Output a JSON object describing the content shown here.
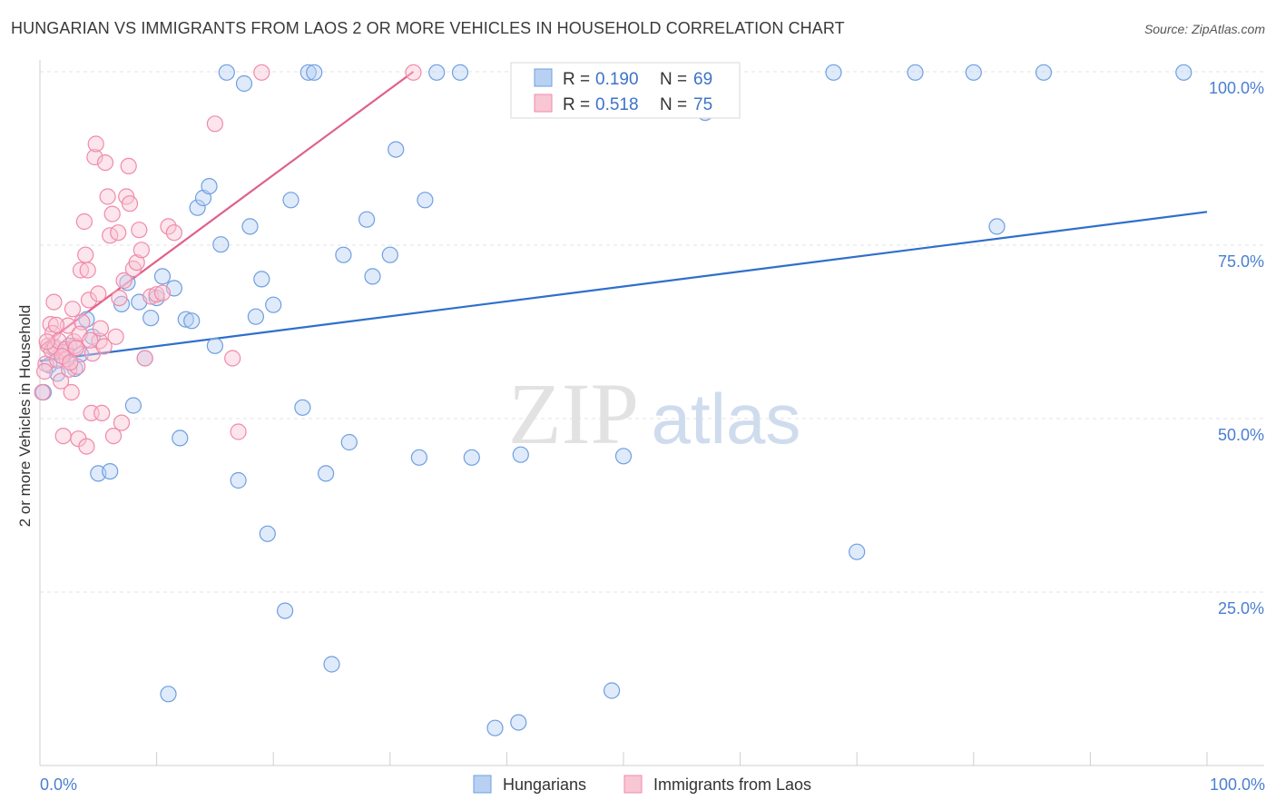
{
  "title": "HUNGARIAN VS IMMIGRANTS FROM LAOS 2 OR MORE VEHICLES IN HOUSEHOLD CORRELATION CHART",
  "source": "Source: ZipAtlas.com",
  "watermark": {
    "zip": "ZIP",
    "atlas": "atlas"
  },
  "chart_data": {
    "type": "scatter",
    "title": "HUNGARIAN VS IMMIGRANTS FROM LAOS 2 OR MORE VEHICLES IN HOUSEHOLD CORRELATION CHART",
    "xlabel": "",
    "ylabel": "2 or more Vehicles in Household",
    "xlim": [
      0,
      100
    ],
    "ylim": [
      0,
      100
    ],
    "x_tick_labels": {
      "left": "0.0%",
      "right": "100.0%"
    },
    "y_ticks": [
      {
        "value": 25,
        "label": "25.0%"
      },
      {
        "value": 50,
        "label": "50.0%"
      },
      {
        "value": 75,
        "label": "75.0%"
      },
      {
        "value": 100,
        "label": "100.0%"
      }
    ],
    "legend": {
      "entries": [
        {
          "r_label": "R =",
          "r_value": "0.190",
          "n_label": "N =",
          "n_value": "69"
        },
        {
          "r_label": "R =",
          "r_value": "0.518",
          "n_label": "N =",
          "n_value": "75"
        }
      ]
    },
    "series": [
      {
        "name": "Hungarians",
        "color": "#6f9fe0",
        "fill": "#b8d1f3",
        "line_color": "#2f6fcb",
        "trend": {
          "x0": 0,
          "y0": 58.3,
          "x1": 100,
          "y1": 79.8
        },
        "points": [
          [
            0.3,
            53.8
          ],
          [
            0.8,
            57.7
          ],
          [
            1.2,
            60.1
          ],
          [
            1.5,
            56.5
          ],
          [
            2.0,
            58.9
          ],
          [
            2.5,
            60.5
          ],
          [
            3.0,
            57.2
          ],
          [
            3.5,
            59.3
          ],
          [
            4.0,
            64.3
          ],
          [
            4.5,
            61.8
          ],
          [
            5.0,
            42.1
          ],
          [
            6.0,
            42.4
          ],
          [
            7.0,
            66.5
          ],
          [
            7.5,
            69.6
          ],
          [
            8.0,
            51.9
          ],
          [
            8.5,
            66.8
          ],
          [
            9.0,
            58.7
          ],
          [
            9.5,
            64.5
          ],
          [
            10.0,
            67.4
          ],
          [
            10.5,
            70.5
          ],
          [
            11.0,
            10.3
          ],
          [
            11.5,
            68.8
          ],
          [
            12.0,
            47.2
          ],
          [
            12.5,
            64.3
          ],
          [
            13.0,
            64.1
          ],
          [
            13.5,
            80.4
          ],
          [
            14.0,
            81.8
          ],
          [
            14.5,
            83.5
          ],
          [
            15.0,
            60.5
          ],
          [
            15.5,
            75.1
          ],
          [
            16.0,
            99.9
          ],
          [
            17.0,
            41.1
          ],
          [
            17.5,
            98.3
          ],
          [
            18.0,
            77.7
          ],
          [
            18.5,
            64.7
          ],
          [
            19.0,
            70.1
          ],
          [
            19.5,
            33.4
          ],
          [
            20.0,
            66.4
          ],
          [
            21.0,
            22.3
          ],
          [
            21.5,
            81.5
          ],
          [
            22.5,
            51.6
          ],
          [
            23.0,
            99.9
          ],
          [
            23.5,
            99.9
          ],
          [
            24.5,
            42.1
          ],
          [
            25.0,
            14.6
          ],
          [
            26.0,
            73.6
          ],
          [
            26.5,
            46.6
          ],
          [
            28.0,
            78.7
          ],
          [
            28.5,
            70.5
          ],
          [
            30.0,
            73.6
          ],
          [
            30.5,
            88.8
          ],
          [
            32.5,
            44.4
          ],
          [
            33.0,
            81.5
          ],
          [
            34.0,
            99.9
          ],
          [
            36.0,
            99.9
          ],
          [
            37.0,
            44.4
          ],
          [
            39.0,
            5.4
          ],
          [
            41.0,
            6.2
          ],
          [
            41.2,
            44.8
          ],
          [
            49.0,
            10.8
          ],
          [
            50.0,
            44.6
          ],
          [
            57.0,
            94.1
          ],
          [
            68.0,
            99.9
          ],
          [
            70.0,
            30.8
          ],
          [
            75.0,
            99.9
          ],
          [
            80.0,
            99.9
          ],
          [
            82.0,
            77.7
          ],
          [
            86.0,
            99.9
          ],
          [
            98.0,
            99.9
          ]
        ]
      },
      {
        "name": "Immigrants from Laos",
        "color": "#f08aa8",
        "fill": "#f8c6d4",
        "line_color": "#e0608a",
        "trend": {
          "x0": 0,
          "y0": 60.3,
          "x1": 32,
          "y1": 100
        },
        "points": [
          [
            0.2,
            53.8
          ],
          [
            0.5,
            57.9
          ],
          [
            0.7,
            60.5
          ],
          [
            0.9,
            63.6
          ],
          [
            1.0,
            59.8
          ],
          [
            1.1,
            62.3
          ],
          [
            1.2,
            66.8
          ],
          [
            1.3,
            60.3
          ],
          [
            1.5,
            58.4
          ],
          [
            1.6,
            61.2
          ],
          [
            1.8,
            55.4
          ],
          [
            2.0,
            47.5
          ],
          [
            2.1,
            59.6
          ],
          [
            2.2,
            60.0
          ],
          [
            2.4,
            63.4
          ],
          [
            2.5,
            57.1
          ],
          [
            2.7,
            53.8
          ],
          [
            2.8,
            65.8
          ],
          [
            3.0,
            60.5
          ],
          [
            3.2,
            57.5
          ],
          [
            3.3,
            47.1
          ],
          [
            3.5,
            71.4
          ],
          [
            3.6,
            63.9
          ],
          [
            3.8,
            78.4
          ],
          [
            3.9,
            73.6
          ],
          [
            4.0,
            46.0
          ],
          [
            4.1,
            71.4
          ],
          [
            4.2,
            67.1
          ],
          [
            4.4,
            50.8
          ],
          [
            4.5,
            59.4
          ],
          [
            4.7,
            87.7
          ],
          [
            4.8,
            89.6
          ],
          [
            5.0,
            68.0
          ],
          [
            5.1,
            61.2
          ],
          [
            5.3,
            50.8
          ],
          [
            5.5,
            60.4
          ],
          [
            5.6,
            86.9
          ],
          [
            5.8,
            82.0
          ],
          [
            6.0,
            76.4
          ],
          [
            6.2,
            79.5
          ],
          [
            6.3,
            47.5
          ],
          [
            6.5,
            61.8
          ],
          [
            6.7,
            76.8
          ],
          [
            6.8,
            67.4
          ],
          [
            7.0,
            49.4
          ],
          [
            7.2,
            69.9
          ],
          [
            7.4,
            82.0
          ],
          [
            7.6,
            86.4
          ],
          [
            7.7,
            81.0
          ],
          [
            8.0,
            71.6
          ],
          [
            8.3,
            72.5
          ],
          [
            8.5,
            77.2
          ],
          [
            8.7,
            74.3
          ],
          [
            9.0,
            58.7
          ],
          [
            9.5,
            67.6
          ],
          [
            10.0,
            67.9
          ],
          [
            10.5,
            68.1
          ],
          [
            11.0,
            77.7
          ],
          [
            11.5,
            76.8
          ],
          [
            15.0,
            92.5
          ],
          [
            16.5,
            58.7
          ],
          [
            17.0,
            48.1
          ],
          [
            19.0,
            99.9
          ],
          [
            32.0,
            99.9
          ],
          [
            0.4,
            56.8
          ],
          [
            0.6,
            61.1
          ],
          [
            1.4,
            63.5
          ],
          [
            2.3,
            58.6
          ],
          [
            2.9,
            61.1
          ],
          [
            3.4,
            62.2
          ],
          [
            4.3,
            61.3
          ],
          [
            5.2,
            63.0
          ],
          [
            1.9,
            59.0
          ],
          [
            2.6,
            58.1
          ],
          [
            3.1,
            60.2
          ]
        ]
      }
    ]
  }
}
